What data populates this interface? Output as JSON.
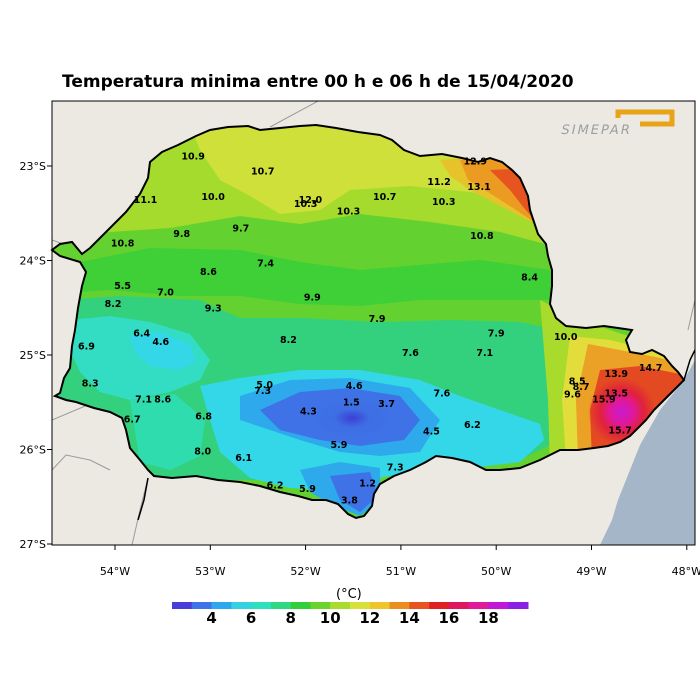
{
  "title": "Temperatura minima entre 00 h e 06 h de 15/04/2020",
  "logo": {
    "text": "SIMEPAR",
    "color": "#e8a317"
  },
  "colors": {
    "ocean": "#a4b6c8",
    "land_outside": "#ebe9e1",
    "state_border": "#000000"
  },
  "chart_data": {
    "type": "heatmap",
    "x_ticks": [
      "54°W",
      "53°W",
      "52°W",
      "51°W",
      "50°W",
      "49°W",
      "48°W"
    ],
    "y_ticks": [
      "23°S",
      "24°S",
      "25°S",
      "26°S",
      "27°S"
    ],
    "colorbar": {
      "unit": "(°C)",
      "labels": [
        "4",
        "6",
        "8",
        "10",
        "12",
        "14",
        "16",
        "18"
      ],
      "colors": [
        "#4a3ed8",
        "#3f74e8",
        "#2ea8ec",
        "#34d2e2",
        "#2ee0bd",
        "#2fd984",
        "#33cf3a",
        "#6bd42c",
        "#a9dc2c",
        "#d8e03a",
        "#efc52c",
        "#eb8e22",
        "#e8541f",
        "#e02222",
        "#e0175e",
        "#e01a9a",
        "#c019d8",
        "#8a22e6"
      ]
    },
    "stations": [
      {
        "label": "10.9",
        "lon": -53.18,
        "lat": -22.9
      },
      {
        "label": "10.7",
        "lon": -52.45,
        "lat": -23.06
      },
      {
        "label": "11.1",
        "lon": -53.68,
        "lat": -23.36
      },
      {
        "label": "10.0",
        "lon": -52.97,
        "lat": -23.33
      },
      {
        "label": "10.3",
        "lon": -52.0,
        "lat": -23.4
      },
      {
        "label": "12.0",
        "lon": -51.95,
        "lat": -23.36
      },
      {
        "label": "10.3",
        "lon": -51.55,
        "lat": -23.48
      },
      {
        "label": "10.7",
        "lon": -51.17,
        "lat": -23.33
      },
      {
        "label": "11.2",
        "lon": -50.6,
        "lat": -23.17
      },
      {
        "label": "10.3",
        "lon": -50.55,
        "lat": -23.38
      },
      {
        "label": "12.9",
        "lon": -50.22,
        "lat": -22.95
      },
      {
        "label": "13.1",
        "lon": -50.18,
        "lat": -23.22
      },
      {
        "label": "10.8",
        "lon": -53.92,
        "lat": -23.82
      },
      {
        "label": "9.8",
        "lon": -53.3,
        "lat": -23.72
      },
      {
        "label": "9.7",
        "lon": -52.68,
        "lat": -23.66
      },
      {
        "label": "10.8",
        "lon": -50.15,
        "lat": -23.74
      },
      {
        "label": "8.6",
        "lon": -53.02,
        "lat": -24.12
      },
      {
        "label": "7.4",
        "lon": -52.42,
        "lat": -24.03
      },
      {
        "label": "8.4",
        "lon": -49.65,
        "lat": -24.18
      },
      {
        "label": "5.5",
        "lon": -53.92,
        "lat": -24.27
      },
      {
        "label": "7.0",
        "lon": -53.47,
        "lat": -24.34
      },
      {
        "label": "9.9",
        "lon": -51.93,
        "lat": -24.39
      },
      {
        "label": "8.2",
        "lon": -54.02,
        "lat": -24.46
      },
      {
        "label": "9.3",
        "lon": -52.97,
        "lat": -24.51
      },
      {
        "label": "7.9",
        "lon": -51.25,
        "lat": -24.62
      },
      {
        "label": "6.4",
        "lon": -53.72,
        "lat": -24.77
      },
      {
        "label": "4.6",
        "lon": -53.52,
        "lat": -24.86
      },
      {
        "label": "8.2",
        "lon": -52.18,
        "lat": -24.84
      },
      {
        "label": "7.9",
        "lon": -50.0,
        "lat": -24.77
      },
      {
        "label": "10.0",
        "lon": -49.27,
        "lat": -24.81
      },
      {
        "label": "6.9",
        "lon": -54.3,
        "lat": -24.91
      },
      {
        "label": "7.6",
        "lon": -50.9,
        "lat": -24.98
      },
      {
        "label": "7.1",
        "lon": -50.12,
        "lat": -24.98
      },
      {
        "label": "13.9",
        "lon": -48.74,
        "lat": -25.2
      },
      {
        "label": "14.7",
        "lon": -48.38,
        "lat": -25.14
      },
      {
        "label": "8.3",
        "lon": -54.26,
        "lat": -25.3
      },
      {
        "label": "5.0",
        "lon": -52.43,
        "lat": -25.32
      },
      {
        "label": "4.6",
        "lon": -51.49,
        "lat": -25.33
      },
      {
        "label": "8.5",
        "lon": -49.15,
        "lat": -25.28
      },
      {
        "label": "8.7",
        "lon": -49.11,
        "lat": -25.34
      },
      {
        "label": "7.3",
        "lon": -52.45,
        "lat": -25.38
      },
      {
        "label": "7.6",
        "lon": -50.57,
        "lat": -25.41
      },
      {
        "label": "9.6",
        "lon": -49.2,
        "lat": -25.42
      },
      {
        "label": "13.5",
        "lon": -48.74,
        "lat": -25.41
      },
      {
        "label": "15.9",
        "lon": -48.87,
        "lat": -25.47
      },
      {
        "label": "7.1",
        "lon": -53.7,
        "lat": -25.47
      },
      {
        "label": "8.6",
        "lon": -53.5,
        "lat": -25.47
      },
      {
        "label": "1.5",
        "lon": -51.52,
        "lat": -25.5
      },
      {
        "label": "3.7",
        "lon": -51.15,
        "lat": -25.52
      },
      {
        "label": "4.3",
        "lon": -51.97,
        "lat": -25.6
      },
      {
        "label": "6.7",
        "lon": -53.82,
        "lat": -25.68
      },
      {
        "label": "6.8",
        "lon": -53.07,
        "lat": -25.65
      },
      {
        "label": "6.2",
        "lon": -50.25,
        "lat": -25.74
      },
      {
        "label": "15.7",
        "lon": -48.7,
        "lat": -25.8
      },
      {
        "label": "4.5",
        "lon": -50.68,
        "lat": -25.81
      },
      {
        "label": "5.9",
        "lon": -51.65,
        "lat": -25.95
      },
      {
        "label": "8.0",
        "lon": -53.08,
        "lat": -26.02
      },
      {
        "label": "6.1",
        "lon": -52.65,
        "lat": -26.09
      },
      {
        "label": "7.3",
        "lon": -51.06,
        "lat": -26.19
      },
      {
        "label": "6.2",
        "lon": -52.32,
        "lat": -26.38
      },
      {
        "label": "1.2",
        "lon": -51.35,
        "lat": -26.36
      },
      {
        "label": "5.9",
        "lon": -51.98,
        "lat": -26.42
      },
      {
        "label": "3.8",
        "lon": -51.54,
        "lat": -26.54
      }
    ]
  }
}
